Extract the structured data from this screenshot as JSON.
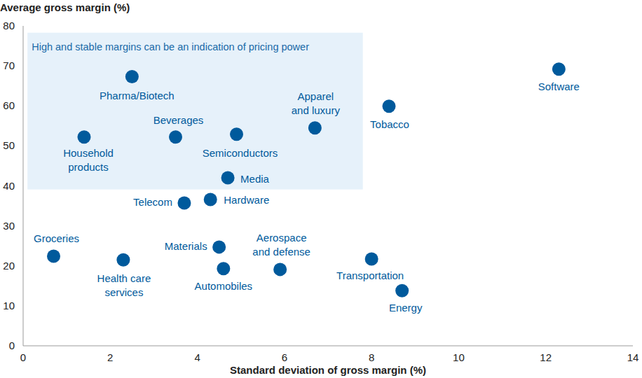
{
  "chart_data": {
    "type": "scatter",
    "xlabel": "Standard deviation of gross margin (%)",
    "ylabel": "Average gross margin (%)",
    "labels": [
      "Pharma/Biotech",
      "Household products",
      "Beverages",
      "Semiconductors",
      "Apparel and luxury",
      "Tobacco",
      "Software",
      "Media",
      "Telecom",
      "Hardware",
      "Groceries",
      "Health care services",
      "Materials",
      "Automobiles",
      "Aerospace and defense",
      "Transportation",
      "Energy"
    ],
    "x": [
      2.5,
      1.4,
      3.5,
      4.9,
      6.7,
      8.4,
      12.3,
      4.7,
      3.7,
      4.3,
      0.7,
      2.3,
      4.5,
      4.6,
      5.9,
      8.0,
      8.7
    ],
    "values": [
      67.3,
      52.2,
      52.2,
      52.9,
      54.5,
      59.9,
      69.2,
      42.0,
      35.7,
      36.6,
      22.4,
      21.5,
      24.7,
      19.3,
      19.1,
      21.7,
      13.8
    ],
    "color": "#005a9c",
    "xlim": [
      0,
      14
    ],
    "ylim": [
      0,
      80
    ],
    "xticks": [
      0,
      2,
      4,
      6,
      8,
      10,
      12,
      14
    ],
    "yticks": [
      0,
      10,
      20,
      30,
      40,
      50,
      60,
      70,
      80
    ],
    "grid": false,
    "annotations": [
      {
        "text": "High and stable margins can be an indication of pricing power",
        "x": [
          0.1,
          7.8
        ],
        "y": [
          39.1,
          78.3
        ]
      }
    ]
  }
}
